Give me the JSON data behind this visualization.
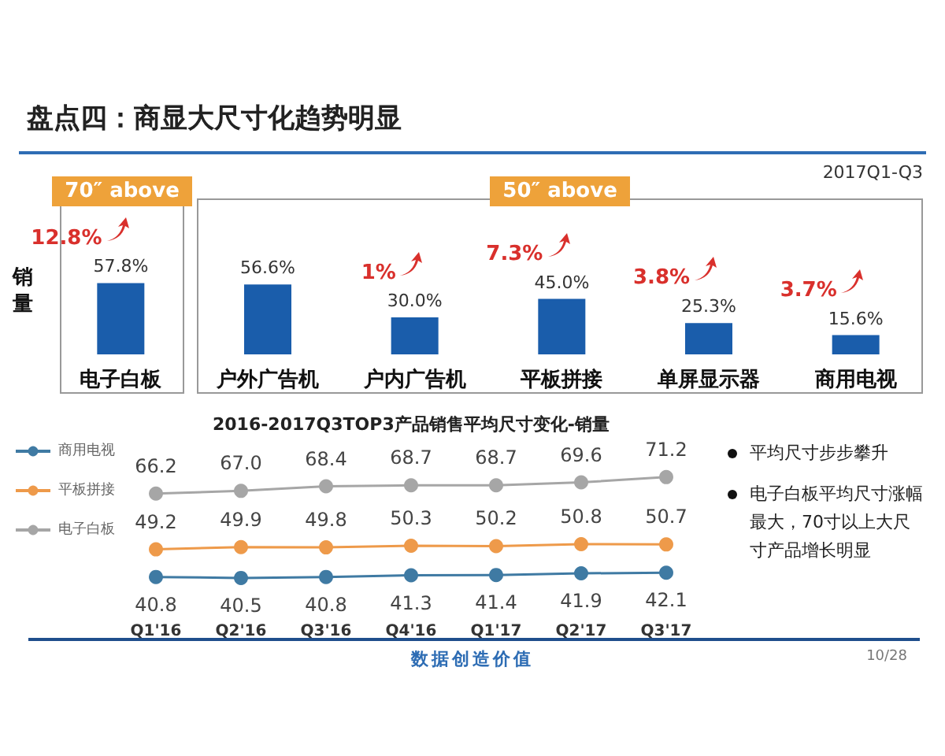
{
  "chart_data": [
    {
      "type": "bar",
      "title": "盘点四：商显大尺寸化趋势明显",
      "ylabel": "销量",
      "categories": [
        "电子白板",
        "户外广告机",
        "户内广告机",
        "平板拼接",
        "单屏显示器",
        "商用电视"
      ],
      "values": [
        57.8,
        56.6,
        30.0,
        45.0,
        25.3,
        15.6
      ],
      "value_labels": [
        "57.8%",
        "56.6%",
        "30.0%",
        "45.0%",
        "25.3%",
        "15.6%"
      ],
      "color": "#1a5dab",
      "annotations": [
        "2017Q1-Q3",
        "70″ above",
        "50″ above",
        "12.8%",
        "1%",
        "7.3%",
        "3.8%",
        "3.7%"
      ]
    },
    {
      "type": "line",
      "title": "2016-2017Q3TOP3产品销售平均尺寸变化-销量",
      "categories": [
        "Q1'16",
        "Q2'16",
        "Q3'16",
        "Q4'16",
        "Q1'17",
        "Q2'17",
        "Q3'17"
      ],
      "series": [
        {
          "name": "商用电视",
          "color": "#3f7aa3",
          "values": [
            40.8,
            40.5,
            40.8,
            41.3,
            41.4,
            41.9,
            42.1
          ],
          "value_labels": [
            "40.8",
            "40.5",
            "40.8",
            "41.3",
            "41.4",
            "41.9",
            "42.1"
          ]
        },
        {
          "name": "平板拼接",
          "color": "#ee9a4a",
          "values": [
            49.2,
            49.9,
            49.8,
            50.3,
            50.2,
            50.8,
            50.7
          ],
          "value_labels": [
            "49.2",
            "49.9",
            "49.8",
            "50.3",
            "50.2",
            "50.8",
            "50.7"
          ]
        },
        {
          "name": "电子白板",
          "color": "#a6a6a6",
          "values": [
            66.2,
            67.0,
            68.4,
            68.7,
            68.7,
            69.6,
            71.2
          ],
          "value_labels": [
            "66.2",
            "67.0",
            "68.4",
            "68.7",
            "68.7",
            "69.6",
            "71.2"
          ]
        }
      ],
      "legend": "left",
      "marker": "circle",
      "annotations": [
        "平均尺寸步步攀升",
        "电子白板平均尺寸涨幅最大，70寸以上大尺寸产品增长明显",
        "数据创造价值",
        "10/28"
      ]
    }
  ]
}
